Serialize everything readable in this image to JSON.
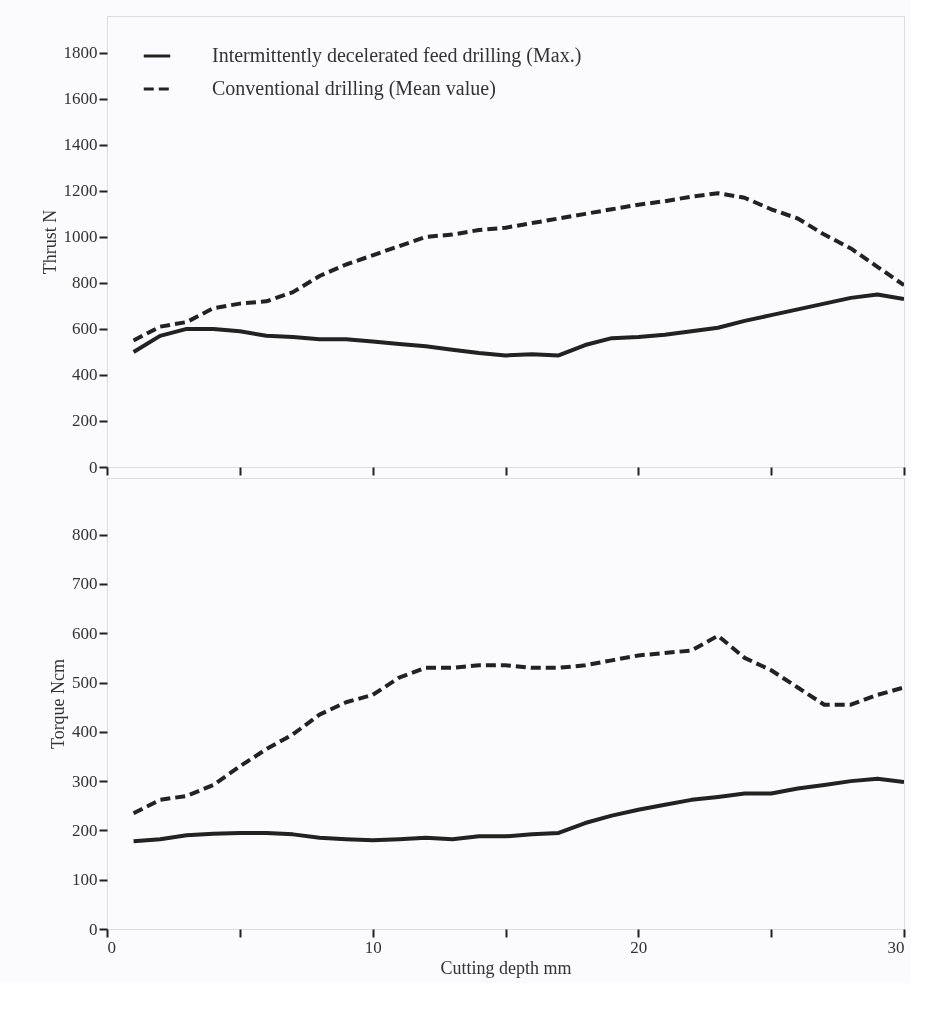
{
  "chart_data": [
    {
      "type": "line",
      "ylabel": "Thrust    N",
      "legend": "top left",
      "tick_labels": "y",
      "grid": false,
      "x": [
        1,
        2,
        3,
        4,
        5,
        6,
        7,
        8,
        9,
        10,
        11,
        12,
        13,
        14,
        15,
        16,
        17,
        18,
        19,
        20,
        21,
        22,
        23,
        24,
        25,
        26,
        27,
        28,
        29,
        30
      ],
      "xlim": [
        0,
        30
      ],
      "xticks": [
        {
          "value": 0,
          "label": null
        },
        {
          "value": 5,
          "label": null
        },
        {
          "value": 10,
          "label": null
        },
        {
          "value": 15,
          "label": null
        },
        {
          "value": 20,
          "label": null
        },
        {
          "value": 25,
          "label": null
        },
        {
          "value": 30,
          "label": null
        }
      ],
      "ylim": [
        0,
        1960
      ],
      "yticks": [
        0,
        200,
        400,
        600,
        800,
        1000,
        1200,
        1400,
        1600,
        1800
      ],
      "series": [
        {
          "name": "Intermittently decelerated feed drilling (Max.)",
          "color": "#222222",
          "line_style": "solid",
          "values": [
            500,
            570,
            600,
            600,
            590,
            570,
            565,
            555,
            555,
            545,
            535,
            525,
            510,
            495,
            485,
            490,
            485,
            530,
            560,
            565,
            575,
            590,
            605,
            635,
            660,
            685,
            710,
            735,
            750,
            730
          ]
        },
        {
          "name": "Conventional drilling  (Mean value)",
          "color": "#222222",
          "line_style": "dashed",
          "values": [
            550,
            610,
            630,
            690,
            710,
            720,
            760,
            830,
            880,
            920,
            960,
            1000,
            1010,
            1030,
            1040,
            1060,
            1080,
            1100,
            1120,
            1140,
            1155,
            1175,
            1190,
            1170,
            1120,
            1080,
            1010,
            950,
            870,
            790
          ]
        }
      ]
    },
    {
      "type": "line",
      "ylabel": "Torque    Ncm",
      "xlabel": "Cutting depth    mm",
      "grid": false,
      "x": [
        1,
        2,
        3,
        4,
        5,
        6,
        7,
        8,
        9,
        10,
        11,
        12,
        13,
        14,
        15,
        16,
        17,
        18,
        19,
        20,
        21,
        22,
        23,
        24,
        25,
        26,
        27,
        28,
        29,
        30
      ],
      "xlim": [
        0,
        30
      ],
      "xticks": [
        0,
        {
          "value": 5,
          "label": null
        },
        10,
        {
          "value": 15,
          "label": null
        },
        20,
        {
          "value": 25,
          "label": null
        },
        30
      ],
      "ylim": [
        0,
        915
      ],
      "yticks": [
        0,
        100,
        200,
        300,
        400,
        500,
        600,
        700,
        800
      ],
      "series": [
        {
          "color": "#222222",
          "line_style": "solid",
          "values": [
            178,
            182,
            190,
            193,
            195,
            195,
            192,
            185,
            182,
            180,
            182,
            185,
            182,
            188,
            188,
            192,
            195,
            215,
            230,
            242,
            252,
            262,
            268,
            275,
            275,
            285,
            292,
            300,
            305,
            298
          ]
        },
        {
          "color": "#222222",
          "line_style": "dashed",
          "values": [
            235,
            262,
            270,
            292,
            330,
            365,
            395,
            435,
            460,
            475,
            510,
            530,
            530,
            535,
            535,
            530,
            530,
            535,
            545,
            555,
            560,
            565,
            595,
            550,
            525,
            490,
            455,
            455,
            475,
            490
          ]
        }
      ]
    }
  ]
}
